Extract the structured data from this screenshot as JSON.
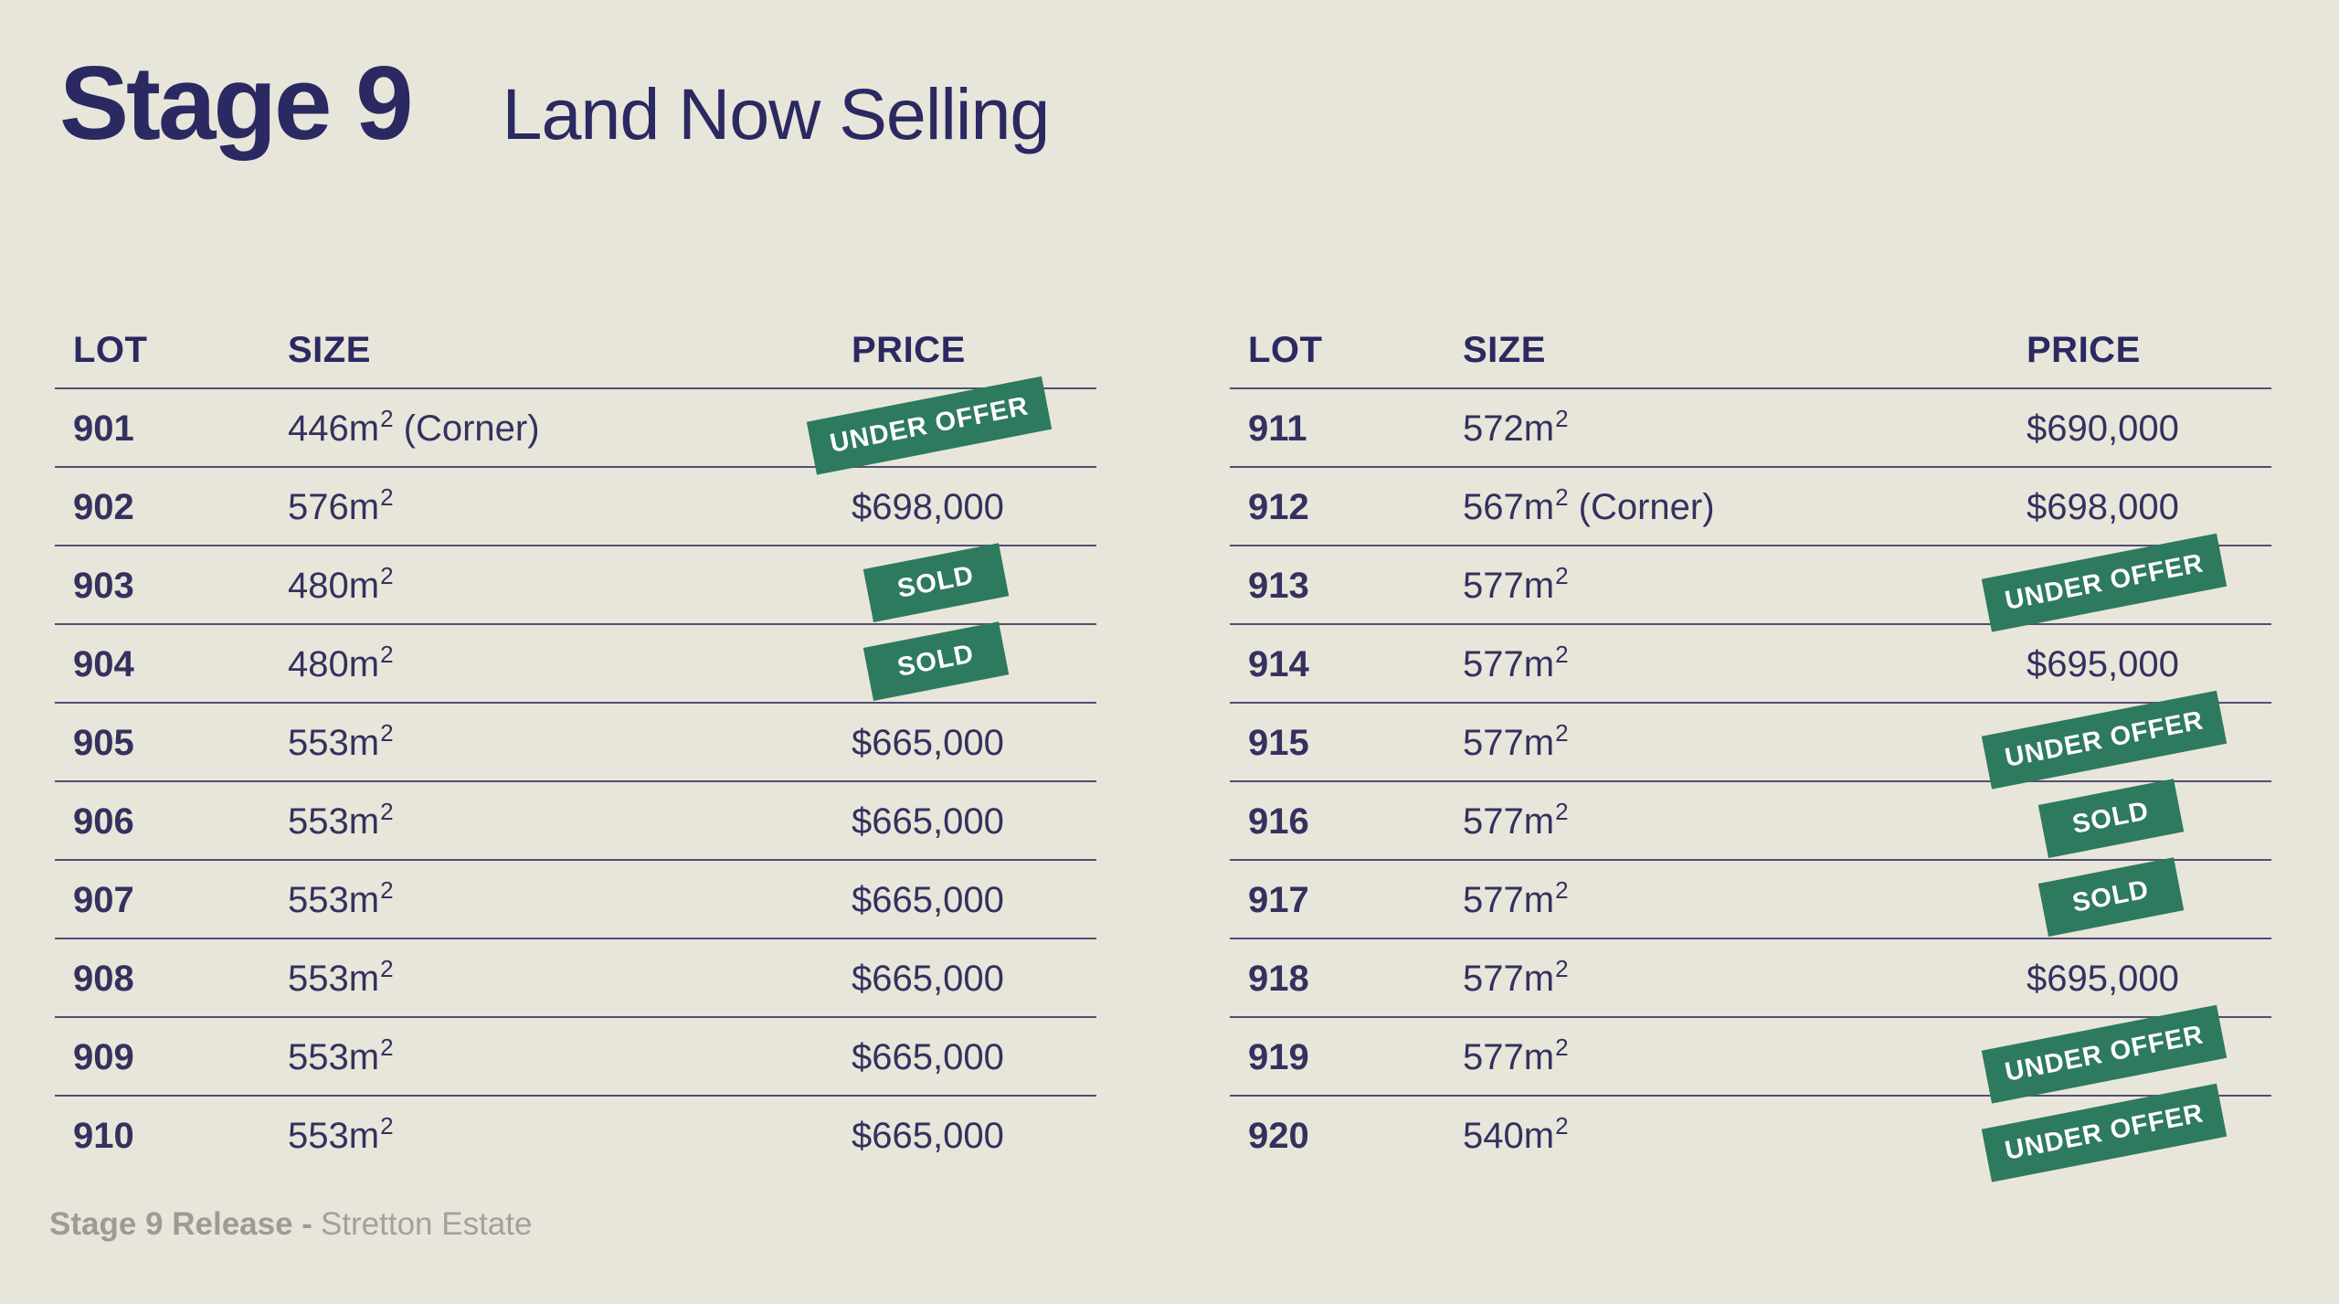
{
  "page": {
    "title": "Stage 9",
    "subtitle": "Land Now Selling",
    "footer": {
      "bold": "Stage 9 Release -",
      "regular": "Stretton Estate"
    }
  },
  "columns": {
    "lot": "LOT",
    "size": "SIZE",
    "price": "PRICE"
  },
  "badge_labels": {
    "sold": "SOLD",
    "under_offer": "UNDER OFFER"
  },
  "colors": {
    "background": "#e8e6da",
    "heading_navy": "#2b2961",
    "text_navy": "#34315f",
    "row_line": "#514e74",
    "badge_green": "#2e7a5e",
    "badge_text": "#ffffff",
    "footer_gray": "#a3a19b"
  },
  "tables": [
    {
      "name": "left",
      "rows": [
        {
          "lot": "901",
          "size_base": "446m",
          "size_sup": "2",
          "size_note": " (Corner)",
          "price": "",
          "status": "under_offer",
          "status_label": "UNDER OFFER"
        },
        {
          "lot": "902",
          "size_base": "576m",
          "size_sup": "2",
          "size_note": "",
          "price": "$698,000",
          "status": "available",
          "status_label": ""
        },
        {
          "lot": "903",
          "size_base": "480m",
          "size_sup": "2",
          "size_note": "",
          "price": "",
          "status": "sold",
          "status_label": "SOLD"
        },
        {
          "lot": "904",
          "size_base": "480m",
          "size_sup": "2",
          "size_note": "",
          "price": "",
          "status": "sold",
          "status_label": "SOLD"
        },
        {
          "lot": "905",
          "size_base": "553m",
          "size_sup": "2",
          "size_note": "",
          "price": "$665,000",
          "status": "available",
          "status_label": ""
        },
        {
          "lot": "906",
          "size_base": "553m",
          "size_sup": "2",
          "size_note": "",
          "price": "$665,000",
          "status": "available",
          "status_label": ""
        },
        {
          "lot": "907",
          "size_base": "553m",
          "size_sup": "2",
          "size_note": "",
          "price": "$665,000",
          "status": "available",
          "status_label": ""
        },
        {
          "lot": "908",
          "size_base": "553m",
          "size_sup": "2",
          "size_note": "",
          "price": "$665,000",
          "status": "available",
          "status_label": ""
        },
        {
          "lot": "909",
          "size_base": "553m",
          "size_sup": "2",
          "size_note": "",
          "price": "$665,000",
          "status": "available",
          "status_label": ""
        },
        {
          "lot": "910",
          "size_base": "553m",
          "size_sup": "2",
          "size_note": "",
          "price": "$665,000",
          "status": "available",
          "status_label": ""
        }
      ]
    },
    {
      "name": "right",
      "rows": [
        {
          "lot": "911",
          "size_base": "572m",
          "size_sup": "2",
          "size_note": "",
          "price": "$690,000",
          "status": "available",
          "status_label": ""
        },
        {
          "lot": "912",
          "size_base": "567m",
          "size_sup": "2",
          "size_note": " (Corner)",
          "price": "$698,000",
          "status": "available",
          "status_label": ""
        },
        {
          "lot": "913",
          "size_base": "577m",
          "size_sup": "2",
          "size_note": "",
          "price": "",
          "status": "under_offer",
          "status_label": "UNDER OFFER"
        },
        {
          "lot": "914",
          "size_base": "577m",
          "size_sup": "2",
          "size_note": "",
          "price": "$695,000",
          "status": "available",
          "status_label": ""
        },
        {
          "lot": "915",
          "size_base": "577m",
          "size_sup": "2",
          "size_note": "",
          "price": "",
          "status": "under_offer",
          "status_label": "UNDER OFFER"
        },
        {
          "lot": "916",
          "size_base": "577m",
          "size_sup": "2",
          "size_note": "",
          "price": "",
          "status": "sold",
          "status_label": "SOLD"
        },
        {
          "lot": "917",
          "size_base": "577m",
          "size_sup": "2",
          "size_note": "",
          "price": "",
          "status": "sold",
          "status_label": "SOLD"
        },
        {
          "lot": "918",
          "size_base": "577m",
          "size_sup": "2",
          "size_note": "",
          "price": "$695,000",
          "status": "available",
          "status_label": ""
        },
        {
          "lot": "919",
          "size_base": "577m",
          "size_sup": "2",
          "size_note": "",
          "price": "",
          "status": "under_offer",
          "status_label": "UNDER OFFER"
        },
        {
          "lot": "920",
          "size_base": "540m",
          "size_sup": "2",
          "size_note": "",
          "price": "",
          "status": "under_offer",
          "status_label": "UNDER OFFER"
        }
      ]
    }
  ]
}
